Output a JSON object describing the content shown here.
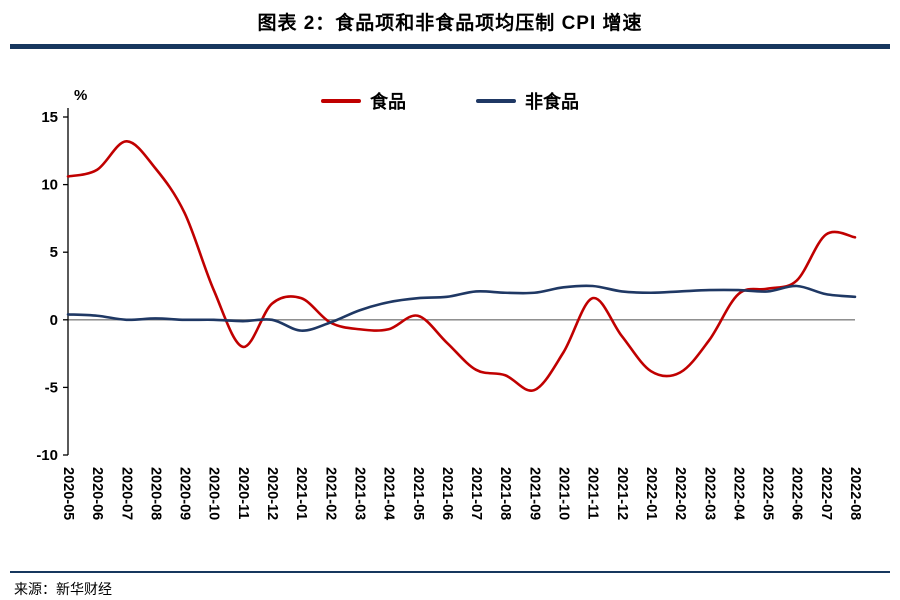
{
  "page": {
    "title": "图表 2：食品项和非食品项均压制 CPI 增速",
    "source": "来源：新华财经"
  },
  "colors": {
    "accent_bar": "#17375E",
    "axis": "#000000",
    "zero_line": "#808080",
    "food_red": "#C00000",
    "nonfood_navy": "#1F3864"
  },
  "chart_data": {
    "type": "line",
    "title": "图表 2：食品项和非食品项均压制 CPI 增速",
    "ylabel": "%",
    "xlabel": "",
    "ylim": [
      -10,
      15
    ],
    "yticks": [
      15,
      10,
      5,
      0,
      -5,
      -10
    ],
    "grid": false,
    "zero_line": true,
    "legend_position": "top",
    "smooth": true,
    "categories": [
      "2020-05",
      "2020-06",
      "2020-07",
      "2020-08",
      "2020-09",
      "2020-10",
      "2020-11",
      "2020-12",
      "2021-01",
      "2021-02",
      "2021-03",
      "2021-04",
      "2021-05",
      "2021-06",
      "2021-07",
      "2021-08",
      "2021-09",
      "2021-10",
      "2021-11",
      "2021-12",
      "2022-01",
      "2022-02",
      "2022-03",
      "2022-04",
      "2022-05",
      "2022-06",
      "2022-07",
      "2022-08"
    ],
    "series": [
      {
        "key": "food",
        "name": "食品",
        "color": "#C00000",
        "values": [
          10.6,
          11.1,
          13.2,
          11.2,
          7.9,
          2.2,
          -2.0,
          1.2,
          1.6,
          -0.2,
          -0.7,
          -0.7,
          0.3,
          -1.7,
          -3.7,
          -4.1,
          -5.2,
          -2.4,
          1.6,
          -1.2,
          -3.8,
          -3.9,
          -1.5,
          1.9,
          2.3,
          2.9,
          6.3,
          6.1
        ]
      },
      {
        "key": "nonfood",
        "name": "非食品",
        "color": "#1F3864",
        "values": [
          0.4,
          0.3,
          0.0,
          0.1,
          0.0,
          0.0,
          -0.1,
          0.0,
          -0.8,
          -0.2,
          0.7,
          1.3,
          1.6,
          1.7,
          2.1,
          2.0,
          2.0,
          2.4,
          2.5,
          2.1,
          2.0,
          2.1,
          2.2,
          2.2,
          2.1,
          2.5,
          1.9,
          1.7
        ]
      }
    ]
  }
}
